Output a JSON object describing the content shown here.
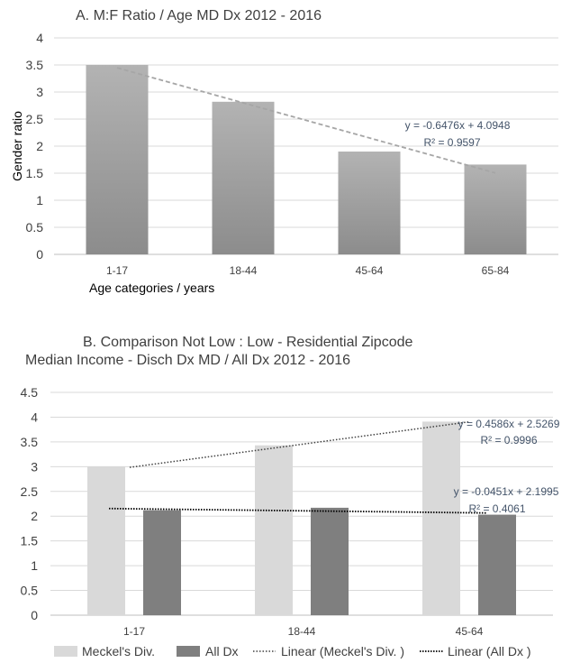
{
  "chart_data": [
    {
      "type": "bar",
      "title": "A. M:F Ratio / Age MD Dx  2012 - 2016",
      "xlabel": "Age categories / years",
      "ylabel": "Gender ratio",
      "categories": [
        "1-17",
        "18-44",
        "45-64",
        "65-84"
      ],
      "values": [
        3.5,
        2.82,
        1.9,
        1.66
      ],
      "ylim": [
        0,
        4
      ],
      "yticks": [
        "0",
        "0.5",
        "1",
        "1.5",
        "2",
        "2.5",
        "3",
        "3.5",
        "4"
      ],
      "grid": true,
      "trendline": {
        "equation": "y = -0.6476x + 4.0948",
        "r2": "R² = 0.9597",
        "slope": -0.6476,
        "intercept": 4.0948
      }
    },
    {
      "type": "bar",
      "title_line1": "B. Comparison Not Low : Low - Residential Zipcode",
      "title_line2": "Median Income  - Disch Dx MD / All Dx 2012 - 2016",
      "categories": [
        "1-17",
        "18-44",
        "45-64"
      ],
      "ylim": [
        0,
        4.5
      ],
      "yticks": [
        "0",
        "0.5",
        "1",
        "1.5",
        "2",
        "2.5",
        "3",
        "3.5",
        "4",
        "4.5"
      ],
      "grid": true,
      "legend_position": "bottom",
      "series": [
        {
          "name": "Meckel's Div.",
          "values": [
            3.0,
            3.43,
            3.91
          ],
          "color": "#d9d9d9"
        },
        {
          "name": "All Dx",
          "values": [
            2.12,
            2.17,
            2.03
          ],
          "color": "#7f7f7f"
        }
      ],
      "trendlines": [
        {
          "name": "Linear (Meckel's Div. )",
          "equation": "y = 0.4586x + 2.5269",
          "r2": "R² = 0.9996",
          "slope": 0.4586,
          "intercept": 2.5269
        },
        {
          "name": "Linear (All Dx  )",
          "equation": "y = -0.0451x + 2.1995",
          "r2": "R² = 0.4061",
          "slope": -0.0451,
          "intercept": 2.1995
        }
      ]
    }
  ]
}
